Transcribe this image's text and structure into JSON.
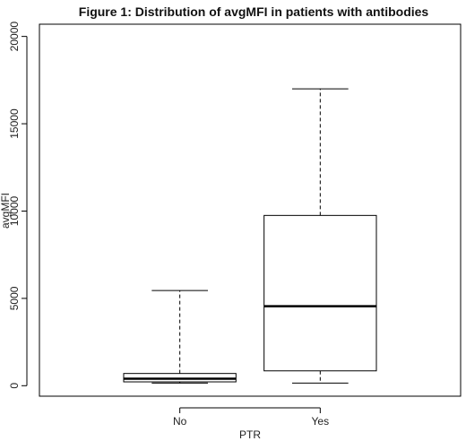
{
  "chart_data": {
    "type": "box",
    "title": "Figure 1: Distribution of avgMFI  in patients  with antibodies",
    "xlabel": "PTR",
    "ylabel": "avgMFI",
    "categories": [
      "No",
      "Yes"
    ],
    "ylim": [
      -600,
      20700
    ],
    "yticks": [
      0,
      5000,
      10000,
      15000,
      20000
    ],
    "boxes": [
      {
        "category": "No",
        "min": 150,
        "q1": 220,
        "median": 400,
        "q3": 700,
        "max": 5450
      },
      {
        "category": "Yes",
        "min": 150,
        "q1": 850,
        "median": 4550,
        "q3": 9750,
        "max": 17000
      }
    ],
    "grid": false,
    "legend": "none",
    "colors": {
      "line": "#000000",
      "box_fill": "#ffffff"
    }
  }
}
